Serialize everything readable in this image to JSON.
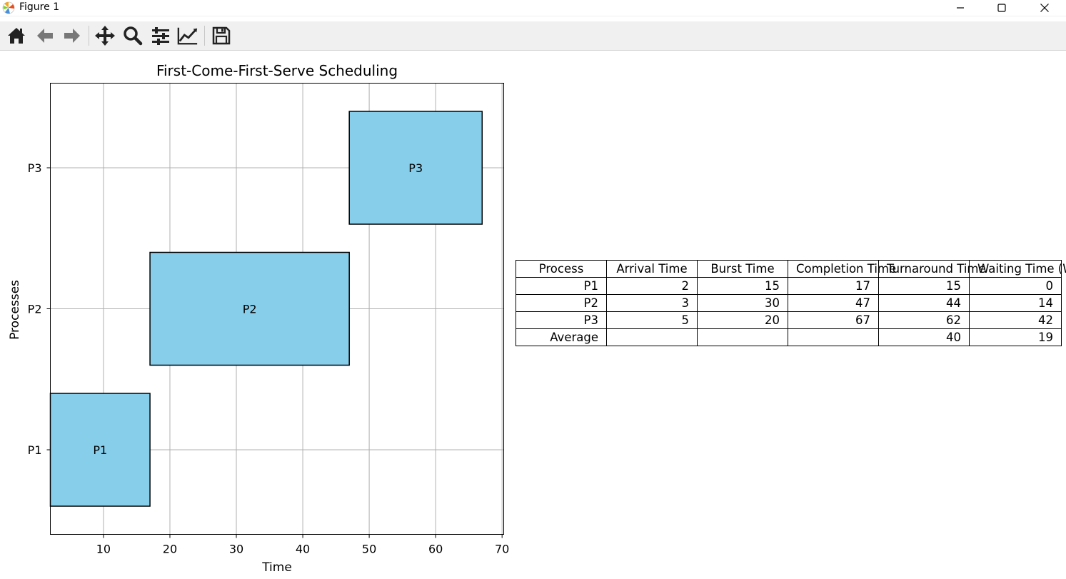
{
  "window": {
    "title": "Figure 1",
    "controls": [
      "minimize",
      "maximize",
      "close"
    ]
  },
  "toolbar": {
    "tools": [
      {
        "name": "home-icon",
        "tip": "Reset original view"
      },
      {
        "name": "back-arrow-icon",
        "tip": "Back"
      },
      {
        "name": "forward-arrow-icon",
        "tip": "Forward"
      },
      {
        "name": "pan-icon",
        "tip": "Pan"
      },
      {
        "name": "zoom-icon",
        "tip": "Zoom"
      },
      {
        "name": "configure-subplots-icon",
        "tip": "Configure subplots"
      },
      {
        "name": "edit-axes-icon",
        "tip": "Edit axis"
      },
      {
        "name": "save-icon",
        "tip": "Save"
      }
    ]
  },
  "colors": {
    "bar_fill": "#87ceeb",
    "bar_edge": "#000000",
    "grid": "#b0b0b0"
  },
  "chart_data": {
    "type": "bar",
    "orientation": "horizontal",
    "title": "First-Come-First-Serve Scheduling",
    "xlabel": "Time",
    "ylabel": "Processes",
    "xlim": [
      2,
      70.25
    ],
    "xticks": [
      10,
      20,
      30,
      40,
      50,
      60,
      70
    ],
    "categories": [
      "P1",
      "P2",
      "P3"
    ],
    "grid": true,
    "bars": [
      {
        "label": "P1",
        "start": 2,
        "end": 17
      },
      {
        "label": "P2",
        "start": 17,
        "end": 47
      },
      {
        "label": "P3",
        "start": 47,
        "end": 67
      }
    ]
  },
  "table": {
    "headers": [
      "Process",
      "Arrival Time",
      "Burst Time",
      "Completion Time",
      "Turnaround Time",
      "Waiting Time (WT)"
    ],
    "rows": [
      [
        "P1",
        "2",
        "15",
        "17",
        "15",
        "0"
      ],
      [
        "P2",
        "3",
        "30",
        "47",
        "44",
        "14"
      ],
      [
        "P3",
        "5",
        "20",
        "67",
        "62",
        "42"
      ],
      [
        "Average",
        "",
        "",
        "",
        "40",
        "19"
      ]
    ]
  }
}
